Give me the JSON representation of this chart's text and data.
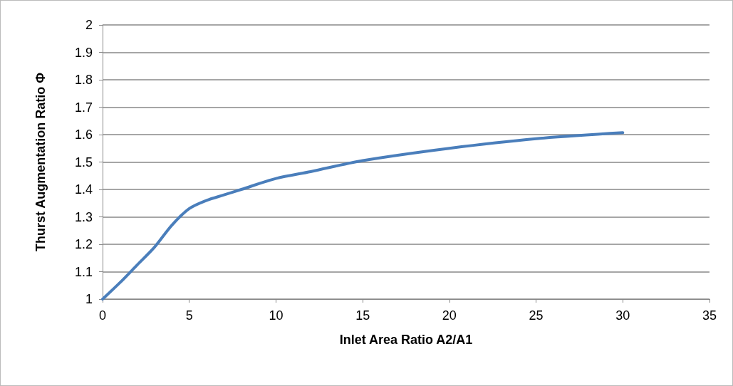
{
  "chart_data": {
    "type": "line",
    "xlabel": "Inlet Area Ratio A2/A1",
    "ylabel": "Thurst Augmentation Ratio Φ",
    "series": [
      {
        "color": "#4a7ebb",
        "x": [
          0,
          1,
          2,
          3,
          4,
          5,
          6,
          7,
          8,
          10,
          12,
          15,
          20,
          25,
          30
        ],
        "values": [
          1,
          1.06,
          1.125,
          1.19,
          1.27,
          1.33,
          1.36,
          1.38,
          1.4,
          1.44,
          1.465,
          1.505,
          1.55,
          1.585,
          1.607
        ]
      }
    ],
    "xlim": [
      0,
      35
    ],
    "xticks": [
      0,
      5,
      10,
      15,
      20,
      25,
      30,
      35
    ],
    "ylim": [
      1,
      2
    ],
    "yticks": [
      1,
      1.1,
      1.2,
      1.3,
      1.4,
      1.5,
      1.6,
      1.7,
      1.8,
      1.9,
      2
    ],
    "grid": "y",
    "marker": "none",
    "line_style": "solid"
  }
}
